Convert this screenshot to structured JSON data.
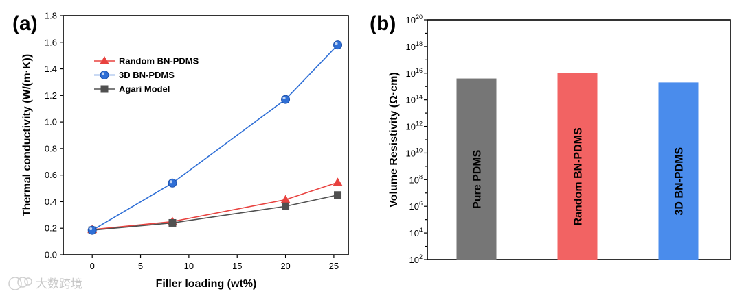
{
  "chart_data": [
    {
      "panel": "(a)",
      "type": "line",
      "title": "",
      "xlabel": "Filler loading (wt%)",
      "ylabel": "Thermal conductivity (W/(m·K))",
      "xlim": [
        -3,
        26.5
      ],
      "ylim": [
        0.0,
        1.8
      ],
      "xticks": [
        0,
        5,
        10,
        15,
        20,
        25
      ],
      "yticks": [
        0.0,
        0.2,
        0.4,
        0.6,
        0.8,
        1.0,
        1.2,
        1.4,
        1.6,
        1.8
      ],
      "ytick_labels": [
        "0.0",
        "0.2",
        "0.4",
        "0.6",
        "0.8",
        "1.0",
        "1.2",
        "1.4",
        "1.6",
        "1.8"
      ],
      "legend_position": "upper-left",
      "series": [
        {
          "name": "Random BN-PDMS",
          "marker": "triangle",
          "color": "#e8423f",
          "x": [
            0,
            8.3,
            20,
            25.4
          ],
          "values": [
            0.19,
            0.25,
            0.415,
            0.545
          ]
        },
        {
          "name": "3D BN-PDMS",
          "marker": "sphere",
          "color": "#2f6fd6",
          "x": [
            0,
            8.3,
            20,
            25.4
          ],
          "values": [
            0.185,
            0.54,
            1.17,
            1.58
          ]
        },
        {
          "name": "Agari Model",
          "marker": "square",
          "color": "#505050",
          "x": [
            0,
            8.3,
            20,
            25.4
          ],
          "values": [
            0.185,
            0.24,
            0.365,
            0.45
          ]
        }
      ]
    },
    {
      "panel": "(b)",
      "type": "bar",
      "title": "",
      "xlabel": "",
      "ylabel": "Volume Resistivity (Ω·cm)",
      "yscale": "log10",
      "ylim_exponent": [
        2,
        20
      ],
      "ytick_exponents": [
        2,
        4,
        6,
        8,
        10,
        12,
        14,
        16,
        18,
        20
      ],
      "tick_base": "10",
      "categories": [
        "Pure PDMS",
        "Random BN-PDMS",
        "3D BN-PDMS"
      ],
      "values_log10": [
        15.6,
        16.0,
        15.3
      ],
      "colors": [
        "#767676",
        "#f26363",
        "#4a8cec"
      ]
    }
  ],
  "watermark": {
    "text": "大数跨境"
  }
}
